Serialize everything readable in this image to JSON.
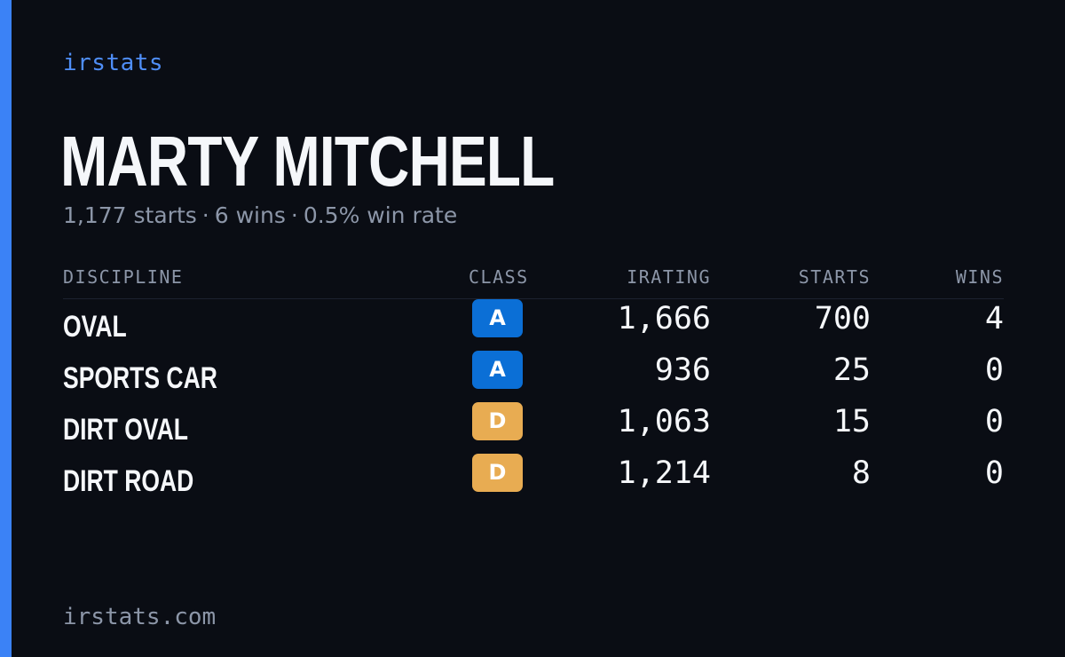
{
  "brand": "irstats",
  "player": {
    "name": "MARTY MITCHELL"
  },
  "summary": {
    "starts": "1,177 starts",
    "wins": "6 wins",
    "win_rate": "0.5% win rate",
    "separator": "·"
  },
  "table": {
    "headers": {
      "discipline": "DISCIPLINE",
      "class": "CLASS",
      "irating": "IRATING",
      "starts": "STARTS",
      "wins": "WINS"
    },
    "rows": [
      {
        "discipline": "OVAL",
        "class": "A",
        "irating": "1,666",
        "starts": "700",
        "wins": "4"
      },
      {
        "discipline": "SPORTS CAR",
        "class": "A",
        "irating": "936",
        "starts": "25",
        "wins": "0"
      },
      {
        "discipline": "DIRT OVAL",
        "class": "D",
        "irating": "1,063",
        "starts": "15",
        "wins": "0"
      },
      {
        "discipline": "DIRT ROAD",
        "class": "D",
        "irating": "1,214",
        "starts": "8",
        "wins": "0"
      }
    ]
  },
  "colors": {
    "accent": "#3b82f6",
    "class_a": "#0b6fd6",
    "class_d": "#e8ac52"
  },
  "footer": "irstats.com"
}
